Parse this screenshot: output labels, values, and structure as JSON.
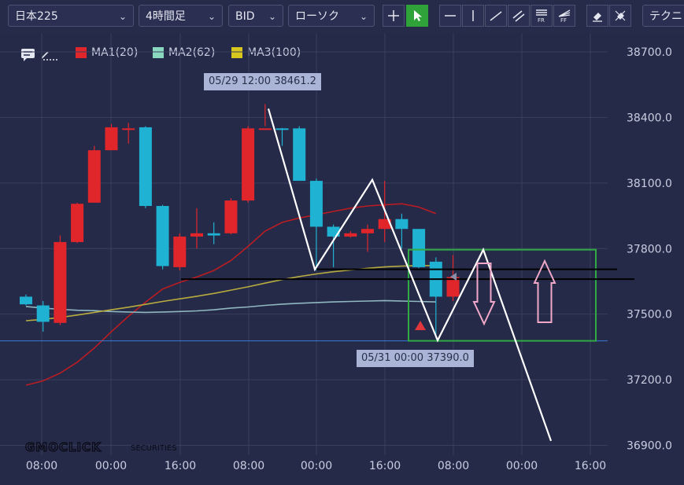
{
  "toolbar": {
    "symbol": "日本225",
    "timeframe": "4時間足",
    "price_type": "BID",
    "chart_style": "ローソク",
    "technical_label": "テクニ",
    "icons": [
      "crosshair-icon",
      "pointer-icon",
      "horizontal-line-icon",
      "vertical-line-icon",
      "trend-line-icon",
      "channel-icon",
      "fibonacci-retracement-icon",
      "fibonacci-fan-icon",
      "eraser-icon",
      "erase-all-icon"
    ]
  },
  "legend": [
    {
      "label": "MA1(20)",
      "color": "#e0262b"
    },
    {
      "label": "MA2(62)",
      "color": "#8ad8c0"
    },
    {
      "label": "MA3(100)",
      "color": "#d7c61e"
    }
  ],
  "watermark": {
    "brand": "GMOCLICK",
    "suffix": "SECURITIES"
  },
  "tooltips": {
    "high": "05/29 12:00 38461.2",
    "low": "05/31 00:00 37390.0"
  },
  "chart_data": {
    "type": "candlestick",
    "y_ticks": [
      "38700.0",
      "38400.0",
      "38100.0",
      "37800.0",
      "37500.0",
      "37200.0",
      "36900.0"
    ],
    "y_tick_values": [
      38700,
      38400,
      38100,
      37800,
      37500,
      37200,
      36900
    ],
    "ylim": [
      36855,
      38765
    ],
    "x_ticks": [
      "08:00",
      "00:00",
      "16:00",
      "08:00",
      "00:00",
      "16:00",
      "08:00",
      "00:00",
      "16:00"
    ],
    "candle_interval_hours": 4,
    "candles": [
      {
        "o": 37580,
        "h": 37590,
        "l": 37540,
        "c": 37545
      },
      {
        "o": 37540,
        "h": 37560,
        "l": 37420,
        "c": 37465
      },
      {
        "o": 37460,
        "h": 37860,
        "l": 37450,
        "c": 37830
      },
      {
        "o": 37830,
        "h": 38010,
        "l": 37825,
        "c": 38005
      },
      {
        "o": 38010,
        "h": 38270,
        "l": 38010,
        "c": 38250
      },
      {
        "o": 38250,
        "h": 38370,
        "l": 38250,
        "c": 38355
      },
      {
        "o": 38350,
        "h": 38375,
        "l": 38280,
        "c": 38350
      },
      {
        "o": 38355,
        "h": 38360,
        "l": 37985,
        "c": 37995
      },
      {
        "o": 37995,
        "h": 38000,
        "l": 37705,
        "c": 37720
      },
      {
        "o": 37715,
        "h": 37870,
        "l": 37700,
        "c": 37855
      },
      {
        "o": 37855,
        "h": 37985,
        "l": 37800,
        "c": 37870
      },
      {
        "o": 37870,
        "h": 37920,
        "l": 37820,
        "c": 37860
      },
      {
        "o": 37870,
        "h": 38030,
        "l": 37865,
        "c": 38020
      },
      {
        "o": 38020,
        "h": 38360,
        "l": 38010,
        "c": 38350
      },
      {
        "o": 38350,
        "h": 38461.2,
        "l": 38360,
        "c": 38350
      },
      {
        "o": 38350,
        "h": 38352,
        "l": 38270,
        "c": 38345
      },
      {
        "o": 38350,
        "h": 38360,
        "l": 38110,
        "c": 38110
      },
      {
        "o": 38110,
        "h": 38120,
        "l": 37700,
        "c": 37900
      },
      {
        "o": 37900,
        "h": 37910,
        "l": 37715,
        "c": 37855
      },
      {
        "o": 37855,
        "h": 37880,
        "l": 37850,
        "c": 37870
      },
      {
        "o": 37870,
        "h": 37910,
        "l": 37785,
        "c": 37890
      },
      {
        "o": 37890,
        "h": 38110,
        "l": 37830,
        "c": 37935
      },
      {
        "o": 37935,
        "h": 37960,
        "l": 37800,
        "c": 37890
      },
      {
        "o": 37890,
        "h": 37880,
        "l": 37710,
        "c": 37715
      },
      {
        "o": 37740,
        "h": 37760,
        "l": 37390,
        "c": 37580
      },
      {
        "o": 37580,
        "h": 37770,
        "l": 37560,
        "c": 37670
      }
    ],
    "moving_averages": [
      {
        "name": "MA1(20)",
        "color": "#b91c22",
        "values": [
          37175,
          37195,
          37230,
          37280,
          37345,
          37420,
          37490,
          37555,
          37615,
          37645,
          37670,
          37700,
          37745,
          37810,
          37880,
          37920,
          37940,
          37955,
          37970,
          37985,
          37995,
          38000,
          38005,
          37990,
          37960
        ]
      },
      {
        "name": "MA2(62)",
        "color": "#8fb8c0",
        "values": [
          37535,
          37528,
          37522,
          37518,
          37516,
          37512,
          37510,
          37508,
          37510,
          37512,
          37515,
          37520,
          37528,
          37533,
          37540,
          37546,
          37550,
          37553,
          37556,
          37558,
          37560,
          37562,
          37560,
          37558,
          37556
        ]
      },
      {
        "name": "MA3(100)",
        "color": "#b8ac3e",
        "values": [
          37470,
          37476,
          37485,
          37496,
          37508,
          37520,
          37532,
          37545,
          37558,
          37570,
          37582,
          37595,
          37610,
          37625,
          37642,
          37658,
          37672,
          37684,
          37694,
          37702,
          37710,
          37716,
          37720,
          37722,
          37722
        ]
      }
    ],
    "current_price_line": 37378,
    "pattern_projection": {
      "description_none": "",
      "zigzag_prices": [
        38440,
        37705,
        38115,
        37380,
        37795,
        36920
      ],
      "box": {
        "top": 37795,
        "bottom": 37378
      },
      "horizontal_lines": [
        37705,
        37660
      ]
    },
    "grid": true
  }
}
